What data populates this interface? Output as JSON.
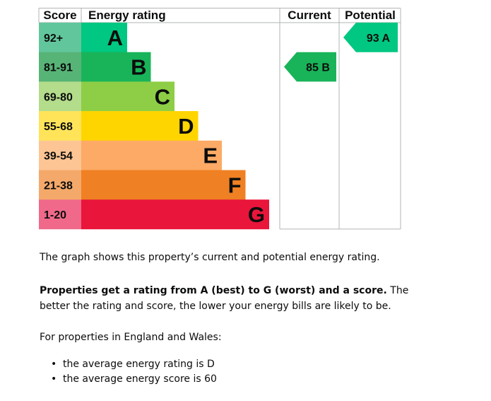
{
  "chart_data": {
    "type": "bar",
    "headers": {
      "score": "Score",
      "energy_rating": "Energy rating",
      "current": "Current",
      "potential": "Potential"
    },
    "bands": [
      {
        "letter": "A",
        "score_range": "92+",
        "color": "#00c781",
        "score_bg": "#62c69c"
      },
      {
        "letter": "B",
        "score_range": "81-91",
        "color": "#19b459",
        "score_bg": "#57b477"
      },
      {
        "letter": "C",
        "score_range": "69-80",
        "color": "#8dce46",
        "score_bg": "#b3dc8b"
      },
      {
        "letter": "D",
        "score_range": "55-68",
        "color": "#ffd500",
        "score_bg": "#ffe45a"
      },
      {
        "letter": "E",
        "score_range": "39-54",
        "color": "#fcaa65",
        "score_bg": "#fdc594"
      },
      {
        "letter": "F",
        "score_range": "21-38",
        "color": "#ef8023",
        "score_bg": "#f4a96a"
      },
      {
        "letter": "G",
        "score_range": "1-20",
        "color": "#e9153b",
        "score_bg": "#f0698a"
      }
    ],
    "current": {
      "score": 85,
      "letter": "B",
      "label": "85 B",
      "color": "#19b459"
    },
    "potential": {
      "score": 93,
      "letter": "A",
      "label": "93 A",
      "color": "#00c781"
    }
  },
  "description": {
    "intro": "The graph shows this property’s current and potential energy rating.",
    "bold_text": "Properties get a rating from A (best) to G (worst) and a score.",
    "rest_text": " The better the rating and score, the lower your energy bills are likely to be.",
    "region": "For properties in England and Wales:",
    "bullets": [
      "the average energy rating is D",
      "the average energy score is 60"
    ]
  }
}
